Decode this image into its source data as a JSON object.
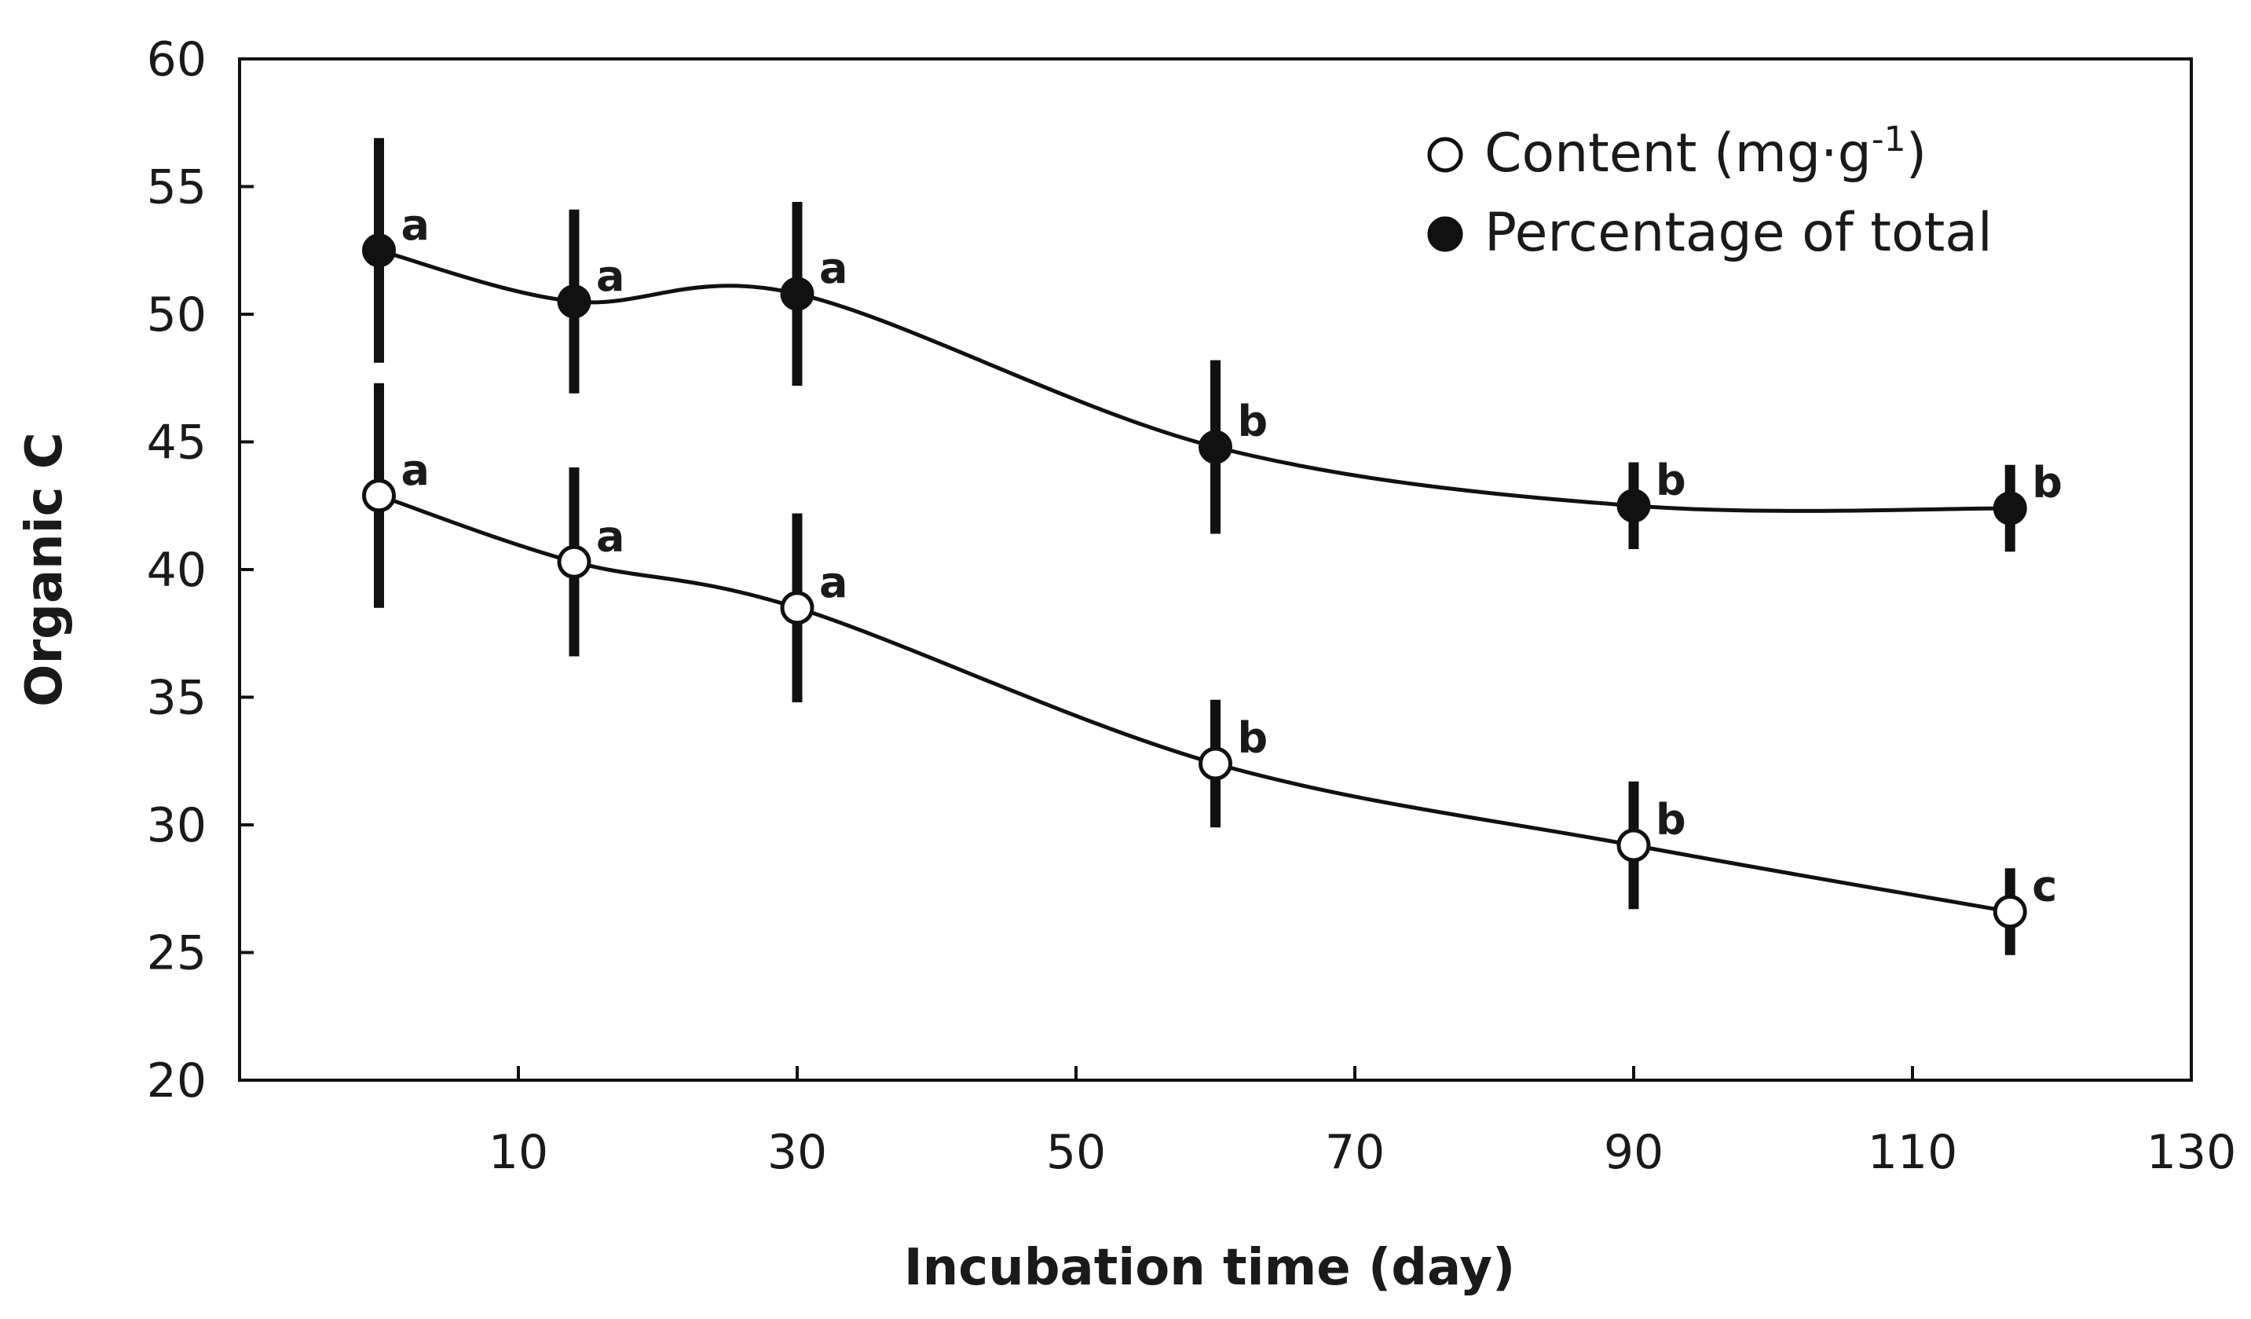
{
  "chart_data": {
    "type": "line",
    "ylabel": "Organic C",
    "xlabel": "Incubation time (day)",
    "xlim": [
      -10,
      130
    ],
    "ylim": [
      20,
      60
    ],
    "xticks": [
      10,
      30,
      50,
      70,
      90,
      110,
      130
    ],
    "yticks": [
      20,
      25,
      30,
      35,
      40,
      45,
      50,
      55,
      60
    ],
    "grid": false,
    "legend_position": "top-right",
    "series": [
      {
        "name": "Content (mg·g⁻¹)",
        "legend_main": "Content (mg·g",
        "legend_sup": "-1",
        "legend_close": ")",
        "marker": "open-circle",
        "x": [
          0,
          14,
          30,
          60,
          90,
          117
        ],
        "y": [
          42.9,
          40.3,
          38.5,
          32.4,
          29.2,
          26.6
        ],
        "err": [
          4.4,
          3.7,
          3.7,
          2.5,
          2.5,
          1.7
        ],
        "letters": [
          "a",
          "a",
          "a",
          "b",
          "b",
          "c"
        ]
      },
      {
        "name": "Percentage of total",
        "legend_main": "Percentage of total",
        "legend_sup": "",
        "legend_close": "",
        "marker": "filled-circle",
        "x": [
          0,
          14,
          30,
          60,
          90,
          117
        ],
        "y": [
          52.5,
          50.5,
          50.8,
          44.8,
          42.5,
          42.4
        ],
        "err": [
          4.4,
          3.6,
          3.6,
          3.4,
          1.7,
          1.7
        ],
        "letters": [
          "a",
          "a",
          "a",
          "b",
          "b",
          "b"
        ]
      }
    ]
  },
  "colors": {
    "ink": "#111111",
    "background": "#ffffff"
  }
}
